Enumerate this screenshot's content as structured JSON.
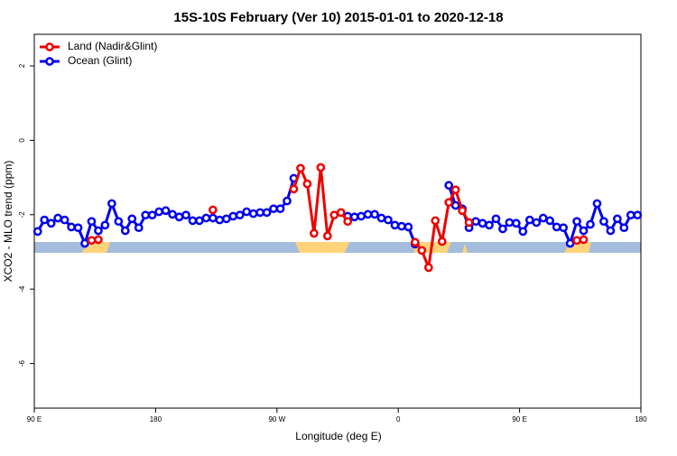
{
  "chart_data": {
    "type": "line",
    "title": "15S-10S February (Ver 10)   2015-01-01 to 2020-12-18",
    "x_label": "Longitude (deg E)",
    "y_label": "XCO2 - MLO trend (ppm)",
    "xlim": [
      90,
      540
    ],
    "ylim": [
      -7.2,
      2.85
    ],
    "xticks": [
      {
        "value": 90,
        "label": "90 E"
      },
      180,
      {
        "value": 270,
        "label": "90 W"
      },
      {
        "value": 360,
        "label": "0"
      },
      {
        "value": 450,
        "label": "90 E"
      },
      {
        "value": 540,
        "label": "180"
      }
    ],
    "yticks": [
      -6,
      -4,
      -2,
      0,
      2
    ],
    "grid": false,
    "legend": "top-left",
    "series": [
      {
        "name": "Land (Nadir&Glint)",
        "color": "#ee0000",
        "x": [
          132.5,
          137.5,
          142.5,
          222.5,
          227.5,
          282.5,
          287.5,
          292.5,
          297.5,
          302.5,
          307.5,
          312.5,
          317.5,
          322.5,
          327.5,
          372.5,
          377.5,
          382.5,
          387.5,
          392.5,
          397.5,
          402.5,
          407.5,
          412.5,
          417.5,
          492.5,
          497.5
        ],
        "values": [
          -2.69,
          -2.67,
          null,
          -1.87,
          null,
          -1.31,
          -0.75,
          -1.17,
          -2.5,
          -0.73,
          -2.57,
          -2.01,
          -1.94,
          -2.18,
          null,
          -2.74,
          -2.96,
          -3.42,
          -2.16,
          -2.72,
          -1.67,
          -1.33,
          -1.89,
          -2.21,
          null,
          -2.69,
          -2.67
        ]
      },
      {
        "name": "Ocean (Glint)",
        "color": "#0000ee",
        "x": [
          92.5,
          97.5,
          102.5,
          107.5,
          112.5,
          117.5,
          122.5,
          127.5,
          132.5,
          137.5,
          142.5,
          147.5,
          152.5,
          157.5,
          162.5,
          167.5,
          172.5,
          177.5,
          182.5,
          187.5,
          192.5,
          197.5,
          202.5,
          207.5,
          212.5,
          217.5,
          222.5,
          227.5,
          232.5,
          237.5,
          242.5,
          247.5,
          252.5,
          257.5,
          262.5,
          267.5,
          272.5,
          277.5,
          282.5,
          287.5,
          292.5,
          297.5,
          302.5,
          307.5,
          312.5,
          317.5,
          322.5,
          327.5,
          332.5,
          337.5,
          342.5,
          347.5,
          352.5,
          357.5,
          362.5,
          367.5,
          372.5,
          377.5,
          382.5,
          387.5,
          392.5,
          397.5,
          402.5,
          407.5,
          412.5,
          417.5,
          422.5,
          427.5,
          432.5,
          437.5,
          442.5,
          447.5,
          452.5,
          457.5,
          462.5,
          467.5,
          472.5,
          477.5,
          482.5,
          487.5,
          492.5,
          497.5,
          502.5,
          507.5,
          512.5,
          517.5,
          522.5,
          527.5,
          532.5,
          537.5
        ],
        "values": [
          -2.45,
          -2.14,
          -2.23,
          -2.09,
          -2.14,
          -2.33,
          -2.35,
          -2.77,
          -2.18,
          -2.43,
          -2.28,
          -1.7,
          -2.18,
          -2.43,
          -2.11,
          -2.35,
          -2.01,
          -2.01,
          -1.92,
          -1.89,
          -1.99,
          -2.06,
          -2.01,
          -2.16,
          -2.16,
          -2.09,
          -2.09,
          -2.14,
          -2.11,
          -2.04,
          -2.01,
          -1.92,
          -1.97,
          -1.94,
          -1.94,
          -1.84,
          -1.84,
          -1.63,
          -1.02,
          null,
          null,
          null,
          null,
          null,
          null,
          null,
          -2.04,
          -2.06,
          -2.04,
          -1.99,
          -1.99,
          -2.09,
          -2.14,
          -2.28,
          -2.31,
          -2.33,
          -2.79,
          null,
          null,
          null,
          null,
          -1.21,
          -1.75,
          -1.84,
          -2.35,
          -2.18,
          -2.23,
          -2.28,
          -2.11,
          -2.38,
          -2.21,
          -2.23,
          -2.45,
          -2.14,
          -2.21,
          -2.09,
          -2.16,
          -2.33,
          -2.35,
          -2.77,
          -2.18,
          -2.43,
          -2.26,
          -1.7,
          -2.18,
          -2.43,
          -2.11,
          -2.35,
          -2.01,
          -2.01
        ]
      }
    ]
  }
}
